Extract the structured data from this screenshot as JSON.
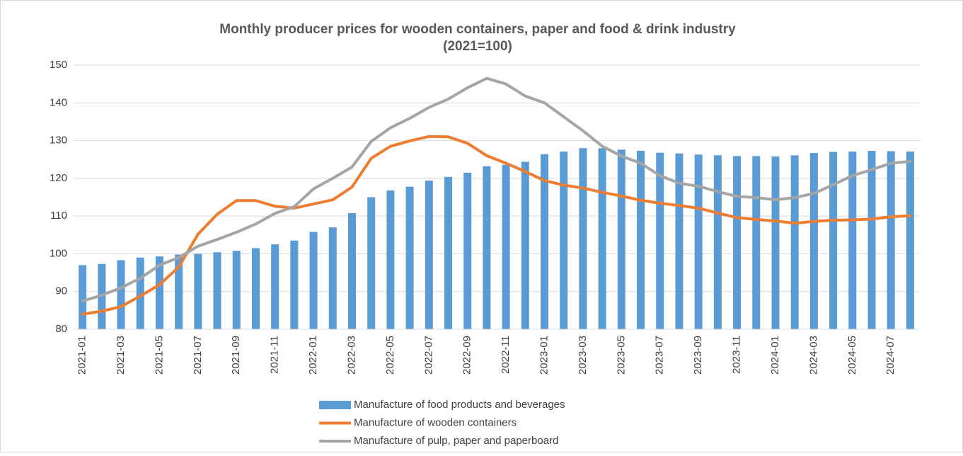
{
  "chart_data": {
    "type": "bar-line",
    "title": [
      "Monthly producer prices for wooden containers, paper and food & drink industry",
      "(2021=100)"
    ],
    "categories": [
      "2021-01",
      null,
      "2021-03",
      null,
      "2021-05",
      null,
      "2021-07",
      null,
      "2021-09",
      null,
      "2021-11",
      null,
      "2022-01",
      null,
      "2022-03",
      null,
      "2022-05",
      null,
      "2022-07",
      null,
      "2022-09",
      null,
      "2022-11",
      null,
      "2023-01",
      null,
      "2023-03",
      null,
      "2023-05",
      null,
      "2023-07",
      null,
      "2023-09",
      null,
      "2023-11",
      null,
      "2024-01",
      null,
      "2024-03",
      null,
      "2024-05",
      null,
      "2024-07",
      null
    ],
    "series": [
      {
        "name": "Manufacture of food products and beverages",
        "type": "bar",
        "color": "#5b9bd5",
        "values": [
          97,
          97.3,
          98.3,
          99,
          99.3,
          99.8,
          100,
          100.4,
          100.8,
          101.5,
          102.5,
          103.5,
          105.8,
          107,
          110.8,
          115,
          116.8,
          117.8,
          119.4,
          120.4,
          121.5,
          123.2,
          123.6,
          124.4,
          126.4,
          127.1,
          128,
          128,
          127.6,
          127.3,
          126.8,
          126.6,
          126.3,
          126.1,
          125.9,
          125.9,
          125.8,
          126.1,
          126.7,
          127,
          127.1,
          127.3,
          127.2,
          127.1
        ]
      },
      {
        "name": "Manufacture of wooden containers",
        "type": "line",
        "color": "#ed7d31",
        "values": [
          84,
          84.8,
          86,
          88.8,
          91.8,
          96.5,
          105.2,
          110.5,
          114.1,
          114.1,
          112.6,
          112.1,
          113.2,
          114.3,
          117.7,
          125.3,
          128.5,
          129.9,
          131.1,
          131,
          129.3,
          126,
          124,
          121.8,
          119.4,
          118.2,
          117.4,
          116.3,
          115.3,
          114.2,
          113.4,
          112.8,
          112.1,
          110.8,
          109.6,
          109.1,
          108.7,
          108.1,
          108.6,
          108.9,
          109,
          109.2,
          109.8,
          110.1
        ]
      },
      {
        "name": "Manufacture of pulp, paper and paperboard",
        "type": "line",
        "color": "#a5a5a5",
        "values": [
          87.5,
          89,
          91,
          93.5,
          97,
          99,
          102,
          103.8,
          105.7,
          107.9,
          110.7,
          112.5,
          117.2,
          120,
          123,
          129.8,
          133.4,
          135.9,
          138.8,
          141,
          144,
          146.5,
          145,
          141.8,
          140,
          136.3,
          132.6,
          128.5,
          125.9,
          124,
          120.7,
          118.7,
          117.9,
          116.5,
          115.2,
          114.9,
          114.3,
          114.9,
          116,
          118.3,
          120.7,
          122.3,
          124,
          124.5
        ]
      }
    ],
    "ylim": [
      80,
      150
    ],
    "yticks": [
      80,
      90,
      100,
      110,
      120,
      130,
      140,
      150
    ],
    "grid": true,
    "legend": "bottom"
  }
}
